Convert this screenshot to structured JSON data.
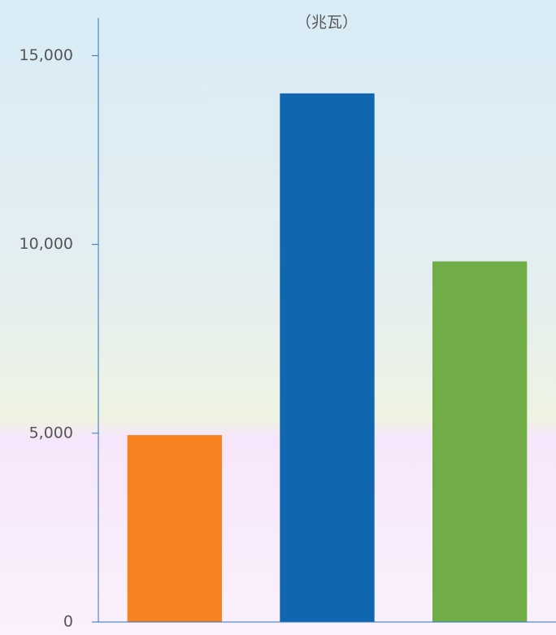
{
  "chart_data": {
    "type": "bar",
    "title": "（兆瓦）",
    "categories": [
      null,
      null,
      null
    ],
    "values": [
      4950,
      14000,
      9550
    ],
    "colors": [
      "#f5821f",
      "#1166b0",
      "#70ad47"
    ],
    "ylim": [
      0,
      16000
    ],
    "yticks": [
      {
        "value": 0,
        "label": "0"
      },
      {
        "value": 5000,
        "label": "5,000"
      },
      {
        "value": 10000,
        "label": "10,000"
      },
      {
        "value": 15000,
        "label": "15,000"
      }
    ],
    "axis_color": "#2e75b6"
  }
}
